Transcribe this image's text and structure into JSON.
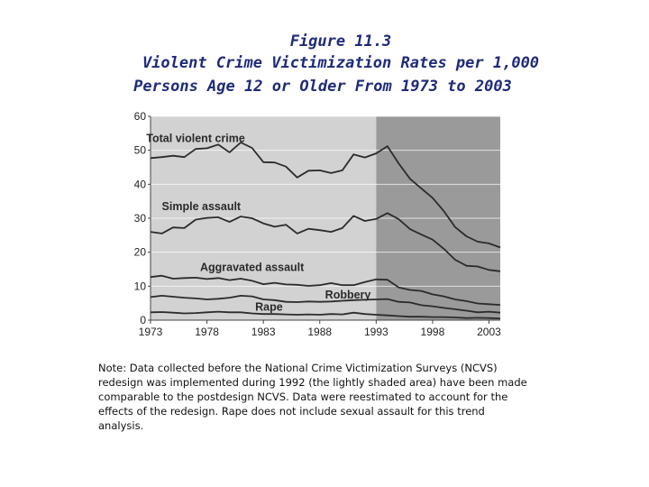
{
  "title_lines": [
    "Figure 11.3",
    "Violent Crime Victimization Rates per 1,000",
    "Persons Age 12 or Older From 1973 to 2003"
  ],
  "note_lines": [
    "Note: Data collected before the National Crime Victimization Surveys (NCVS)",
    "redesign was implemented during 1992 (the lightly shaded area) have been made",
    "comparable to the postdesign NCVS. Data were reestimated to account for the",
    "effects of the redesign. Rape does not include sexual assault for this trend",
    "analysis."
  ],
  "colors": {
    "predesign_shade": "#d2d2d2",
    "postdesign_shade": "#9a9a9a",
    "line": "#2b2b2b",
    "title": "#1f2a78"
  },
  "chart_data": {
    "type": "line",
    "title": "Violent Crime Victimization Rates per 1,000 Persons Age 12 or Older From 1973 to 2003",
    "xlabel": "",
    "ylabel": "",
    "xlim": [
      1973,
      2004
    ],
    "ylim": [
      0,
      60
    ],
    "x_ticks": [
      1973,
      1978,
      1983,
      1988,
      1993,
      1998,
      2003
    ],
    "y_ticks": [
      0,
      10,
      20,
      30,
      40,
      50,
      60
    ],
    "x": [
      1973,
      1974,
      1975,
      1976,
      1977,
      1978,
      1979,
      1980,
      1981,
      1982,
      1983,
      1984,
      1985,
      1986,
      1987,
      1988,
      1989,
      1990,
      1991,
      1992,
      1993,
      1994,
      1995,
      1996,
      1997,
      1998,
      1999,
      2000,
      2001,
      2002,
      2003,
      2004
    ],
    "shaded_regions": [
      {
        "from": 1973,
        "to": 1993,
        "shade": "light"
      },
      {
        "from": 1993,
        "to": 2004,
        "shade": "dark"
      }
    ],
    "grid": true,
    "series": [
      {
        "name": "Total violent crime",
        "label_at": [
          1977,
          52.4
        ],
        "values": [
          47.7,
          48.0,
          48.4,
          48.0,
          50.4,
          50.6,
          51.7,
          49.4,
          52.3,
          50.7,
          46.5,
          46.4,
          45.2,
          42.0,
          44.0,
          44.1,
          43.3,
          44.1,
          48.8,
          47.9,
          49.1,
          51.2,
          46.1,
          41.6,
          38.8,
          36.0,
          32.1,
          27.4,
          24.7,
          23.1,
          22.6,
          21.4
        ]
      },
      {
        "name": "Simple assault",
        "label_at": [
          1977.5,
          32.4
        ],
        "values": [
          26.0,
          25.5,
          27.3,
          27.1,
          29.6,
          30.1,
          30.3,
          28.9,
          30.5,
          30.0,
          28.5,
          27.5,
          28.1,
          25.5,
          26.9,
          26.5,
          26.0,
          27.1,
          30.7,
          29.2,
          29.8,
          31.5,
          29.7,
          26.8,
          25.2,
          23.7,
          21.0,
          17.8,
          16.0,
          15.8,
          14.8,
          14.4
        ]
      },
      {
        "name": "Aggravated assault",
        "label_at": [
          1982,
          14.5
        ],
        "values": [
          12.7,
          13.1,
          12.2,
          12.4,
          12.5,
          12.1,
          12.4,
          11.8,
          12.2,
          11.6,
          10.6,
          11.0,
          10.5,
          10.4,
          10.1,
          10.3,
          10.9,
          10.3,
          10.3,
          11.2,
          12.0,
          11.9,
          9.6,
          8.9,
          8.6,
          7.6,
          7.0,
          6.1,
          5.6,
          4.9,
          4.7,
          4.5
        ]
      },
      {
        "name": "Robbery",
        "label_at": [
          1990.5,
          6.4
        ],
        "values": [
          6.8,
          7.2,
          6.9,
          6.6,
          6.4,
          6.1,
          6.3,
          6.6,
          7.2,
          7.0,
          6.1,
          5.9,
          5.4,
          5.3,
          5.5,
          5.4,
          5.5,
          5.7,
          5.9,
          6.0,
          6.1,
          6.2,
          5.4,
          5.2,
          4.4,
          4.1,
          3.6,
          3.2,
          2.8,
          2.3,
          2.5,
          2.2
        ]
      },
      {
        "name": "Rape",
        "label_at": [
          1983.5,
          2.8
        ],
        "values": [
          2.3,
          2.4,
          2.2,
          2.0,
          2.1,
          2.3,
          2.5,
          2.3,
          2.3,
          2.0,
          1.8,
          1.8,
          1.7,
          1.6,
          1.7,
          1.6,
          1.8,
          1.7,
          2.2,
          1.8,
          1.6,
          1.4,
          1.2,
          1.0,
          1.0,
          0.9,
          0.9,
          0.8,
          0.6,
          0.7,
          0.6,
          0.5
        ]
      }
    ]
  }
}
